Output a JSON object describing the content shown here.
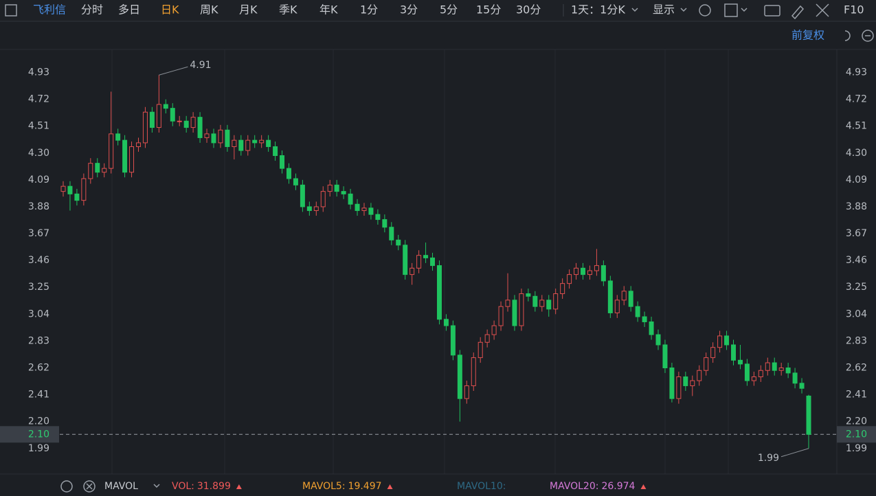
{
  "toolbar": {
    "stock": "飞利信",
    "tabs": [
      "分时",
      "多日",
      "日K",
      "周K",
      "月K",
      "季K",
      "年K",
      "1分",
      "3分",
      "5分",
      "15分",
      "30分"
    ],
    "period": "1天：1分K",
    "display": "显示",
    "f10": "F10",
    "adjust": "前复权"
  },
  "chart_data": {
    "type": "candlestick",
    "open": [
      4.0,
      4.04,
      3.98,
      3.93,
      4.1,
      4.22,
      4.15,
      4.18,
      4.45,
      4.4,
      4.15,
      4.35,
      4.38,
      4.62,
      4.5,
      4.68,
      4.65,
      4.55,
      4.55,
      4.5,
      4.58,
      4.42,
      4.45,
      4.38,
      4.48,
      4.35,
      4.4,
      4.32,
      4.4,
      4.38,
      4.4,
      4.35,
      4.28,
      4.18,
      4.1,
      4.05,
      3.88,
      3.85,
      3.88,
      4.0,
      4.05,
      4.0,
      3.98,
      3.9,
      3.85,
      3.87,
      3.82,
      3.78,
      3.72,
      3.62,
      3.58,
      3.35,
      3.4,
      3.5,
      3.48,
      3.42,
      3.0,
      2.95,
      2.72,
      2.38,
      2.48,
      2.7,
      2.82,
      2.88,
      2.95,
      3.1,
      3.15,
      2.95,
      3.2,
      3.18,
      3.1,
      3.15,
      3.08,
      3.2,
      3.28,
      3.35,
      3.4,
      3.35,
      3.38,
      3.42,
      3.3,
      3.05,
      3.15,
      3.22,
      3.1,
      3.02,
      2.98,
      2.88,
      2.8,
      2.62,
      2.38,
      2.55,
      2.48,
      2.52,
      2.6,
      2.7,
      2.78,
      2.87,
      2.8,
      2.68,
      2.65,
      2.52,
      2.55,
      2.6,
      2.66,
      2.6,
      2.62,
      2.58,
      2.5,
      2.4
    ],
    "high": [
      4.08,
      4.08,
      4.02,
      4.14,
      4.26,
      4.26,
      4.22,
      4.78,
      4.49,
      4.44,
      4.39,
      4.42,
      4.66,
      4.66,
      4.91,
      4.72,
      4.69,
      4.59,
      4.59,
      4.62,
      4.62,
      4.49,
      4.49,
      4.52,
      4.52,
      4.44,
      4.44,
      4.44,
      4.44,
      4.44,
      4.44,
      4.39,
      4.32,
      4.22,
      4.14,
      4.09,
      3.92,
      3.92,
      4.04,
      4.09,
      4.09,
      4.04,
      4.02,
      3.94,
      3.91,
      3.91,
      3.86,
      3.82,
      3.76,
      3.66,
      3.62,
      3.44,
      3.54,
      3.6,
      3.52,
      3.46,
      3.04,
      2.99,
      2.76,
      2.52,
      2.74,
      2.86,
      2.92,
      2.99,
      3.14,
      3.36,
      3.19,
      3.24,
      3.24,
      3.22,
      3.19,
      3.19,
      3.24,
      3.32,
      3.39,
      3.44,
      3.44,
      3.42,
      3.55,
      3.46,
      3.34,
      3.19,
      3.26,
      3.26,
      3.14,
      3.06,
      3.02,
      2.92,
      2.84,
      2.66,
      2.59,
      2.59,
      2.56,
      2.64,
      2.74,
      2.82,
      2.91,
      2.91,
      2.84,
      2.8,
      2.69,
      2.59,
      2.64,
      2.7,
      2.7,
      2.66,
      2.66,
      2.62,
      2.54,
      2.41
    ],
    "low": [
      3.96,
      3.85,
      3.89,
      3.89,
      4.06,
      4.11,
      4.11,
      4.14,
      4.36,
      4.11,
      4.11,
      4.31,
      4.34,
      4.46,
      4.46,
      4.61,
      4.51,
      4.51,
      4.46,
      4.46,
      4.38,
      4.38,
      4.34,
      4.34,
      4.31,
      4.25,
      4.28,
      4.28,
      4.34,
      4.34,
      4.31,
      4.24,
      4.14,
      4.06,
      4.01,
      3.84,
      3.81,
      3.81,
      3.84,
      3.96,
      3.96,
      3.94,
      3.86,
      3.81,
      3.81,
      3.78,
      3.74,
      3.68,
      3.58,
      3.54,
      3.31,
      3.27,
      3.36,
      3.44,
      3.38,
      2.96,
      2.91,
      2.68,
      2.2,
      2.34,
      2.44,
      2.66,
      2.78,
      2.84,
      2.91,
      3.06,
      2.91,
      2.91,
      3.14,
      3.06,
      3.06,
      3.02,
      3.04,
      3.16,
      3.24,
      3.31,
      3.31,
      3.31,
      3.34,
      3.26,
      3.01,
      3.01,
      3.11,
      3.06,
      2.98,
      2.94,
      2.84,
      2.76,
      2.58,
      2.35,
      2.34,
      2.44,
      2.4,
      2.48,
      2.56,
      2.66,
      2.74,
      2.76,
      2.64,
      2.61,
      2.48,
      2.48,
      2.51,
      2.56,
      2.56,
      2.56,
      2.54,
      2.46,
      2.42,
      1.99
    ],
    "close": [
      4.04,
      3.98,
      3.93,
      4.1,
      4.22,
      4.15,
      4.18,
      4.45,
      4.4,
      4.15,
      4.35,
      4.38,
      4.62,
      4.5,
      4.68,
      4.65,
      4.55,
      4.55,
      4.5,
      4.58,
      4.42,
      4.45,
      4.38,
      4.48,
      4.35,
      4.4,
      4.32,
      4.4,
      4.38,
      4.4,
      4.35,
      4.28,
      4.18,
      4.1,
      4.05,
      3.88,
      3.85,
      3.88,
      4.0,
      4.05,
      4.0,
      3.98,
      3.9,
      3.85,
      3.87,
      3.82,
      3.78,
      3.72,
      3.62,
      3.58,
      3.35,
      3.4,
      3.5,
      3.48,
      3.42,
      3.0,
      2.95,
      2.72,
      2.38,
      2.48,
      2.7,
      2.82,
      2.88,
      2.95,
      3.1,
      3.15,
      2.95,
      3.2,
      3.18,
      3.1,
      3.15,
      3.08,
      3.2,
      3.28,
      3.35,
      3.4,
      3.35,
      3.38,
      3.42,
      3.3,
      3.05,
      3.15,
      3.22,
      3.1,
      3.02,
      2.98,
      2.88,
      2.8,
      2.62,
      2.38,
      2.55,
      2.48,
      2.52,
      2.6,
      2.7,
      2.78,
      2.87,
      2.8,
      2.68,
      2.65,
      2.52,
      2.55,
      2.6,
      2.66,
      2.6,
      2.62,
      2.58,
      2.5,
      2.46,
      2.1
    ],
    "up_color": "#e0504f",
    "down_color": "#1fc35f",
    "ylim": [
      1.79,
      5.11
    ],
    "yticks": [
      4.93,
      4.72,
      4.51,
      {
        "value": 4.3,
        "label": "4.30"
      },
      4.09,
      3.88,
      3.67,
      3.46,
      3.25,
      3.04,
      2.83,
      2.62,
      2.41,
      {
        "value": 2.2,
        "label": "2.20"
      },
      1.99
    ],
    "last_price": {
      "value": 2.1,
      "label": "2.10"
    },
    "last_price_color": "#2ecc71",
    "high_label": 4.91,
    "low_label": 1.99
  },
  "footer": {
    "indicator": "MAVOL",
    "values": [
      {
        "name": "VOL:",
        "value": 31.899,
        "color": "#f05a5a"
      },
      {
        "name": "MAVOL5:",
        "value": 19.497,
        "color": "#f0a030"
      },
      {
        "name": "MAVOL10:",
        "color": "#2e6a86"
      },
      {
        "name": "MAVOL20:",
        "value": 26.974,
        "color": "#d57ad9"
      }
    ]
  }
}
